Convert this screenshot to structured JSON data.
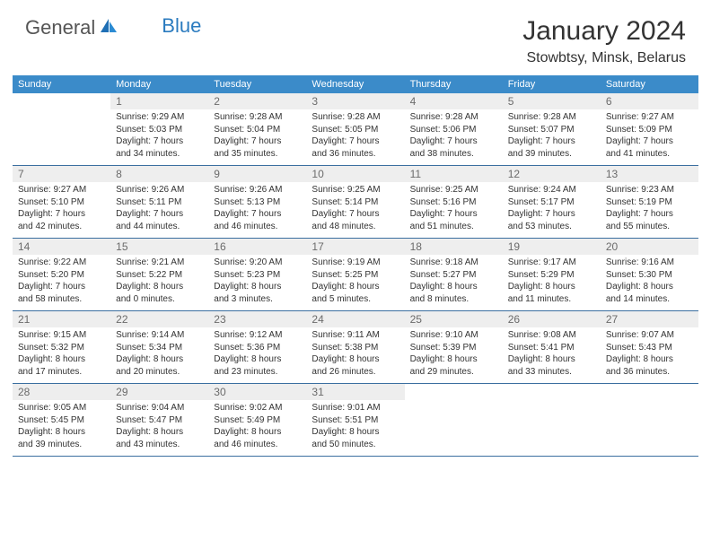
{
  "logo": {
    "part1": "General",
    "part2": "Blue"
  },
  "title": "January 2024",
  "location": "Stowbtsy, Minsk, Belarus",
  "colors": {
    "header_bg": "#3b8bc9",
    "header_text": "#ffffff",
    "row_border": "#3b6fa0",
    "daynum_shade": "#eeeeee",
    "text": "#333333",
    "logo_gray": "#555555",
    "logo_blue": "#2b7bbf"
  },
  "typography": {
    "title_fontsize": 30,
    "location_fontsize": 16,
    "dow_fontsize": 11,
    "daynum_fontsize": 12,
    "body_fontsize": 10
  },
  "days_of_week": [
    "Sunday",
    "Monday",
    "Tuesday",
    "Wednesday",
    "Thursday",
    "Friday",
    "Saturday"
  ],
  "layout": {
    "cols": 7,
    "rows": 5,
    "first_weekday_index": 1,
    "last_day": 31
  },
  "days": [
    {
      "n": "1",
      "sr": "Sunrise: 9:29 AM",
      "ss": "Sunset: 5:03 PM",
      "d1": "Daylight: 7 hours",
      "d2": "and 34 minutes."
    },
    {
      "n": "2",
      "sr": "Sunrise: 9:28 AM",
      "ss": "Sunset: 5:04 PM",
      "d1": "Daylight: 7 hours",
      "d2": "and 35 minutes."
    },
    {
      "n": "3",
      "sr": "Sunrise: 9:28 AM",
      "ss": "Sunset: 5:05 PM",
      "d1": "Daylight: 7 hours",
      "d2": "and 36 minutes."
    },
    {
      "n": "4",
      "sr": "Sunrise: 9:28 AM",
      "ss": "Sunset: 5:06 PM",
      "d1": "Daylight: 7 hours",
      "d2": "and 38 minutes."
    },
    {
      "n": "5",
      "sr": "Sunrise: 9:28 AM",
      "ss": "Sunset: 5:07 PM",
      "d1": "Daylight: 7 hours",
      "d2": "and 39 minutes."
    },
    {
      "n": "6",
      "sr": "Sunrise: 9:27 AM",
      "ss": "Sunset: 5:09 PM",
      "d1": "Daylight: 7 hours",
      "d2": "and 41 minutes."
    },
    {
      "n": "7",
      "sr": "Sunrise: 9:27 AM",
      "ss": "Sunset: 5:10 PM",
      "d1": "Daylight: 7 hours",
      "d2": "and 42 minutes."
    },
    {
      "n": "8",
      "sr": "Sunrise: 9:26 AM",
      "ss": "Sunset: 5:11 PM",
      "d1": "Daylight: 7 hours",
      "d2": "and 44 minutes."
    },
    {
      "n": "9",
      "sr": "Sunrise: 9:26 AM",
      "ss": "Sunset: 5:13 PM",
      "d1": "Daylight: 7 hours",
      "d2": "and 46 minutes."
    },
    {
      "n": "10",
      "sr": "Sunrise: 9:25 AM",
      "ss": "Sunset: 5:14 PM",
      "d1": "Daylight: 7 hours",
      "d2": "and 48 minutes."
    },
    {
      "n": "11",
      "sr": "Sunrise: 9:25 AM",
      "ss": "Sunset: 5:16 PM",
      "d1": "Daylight: 7 hours",
      "d2": "and 51 minutes."
    },
    {
      "n": "12",
      "sr": "Sunrise: 9:24 AM",
      "ss": "Sunset: 5:17 PM",
      "d1": "Daylight: 7 hours",
      "d2": "and 53 minutes."
    },
    {
      "n": "13",
      "sr": "Sunrise: 9:23 AM",
      "ss": "Sunset: 5:19 PM",
      "d1": "Daylight: 7 hours",
      "d2": "and 55 minutes."
    },
    {
      "n": "14",
      "sr": "Sunrise: 9:22 AM",
      "ss": "Sunset: 5:20 PM",
      "d1": "Daylight: 7 hours",
      "d2": "and 58 minutes."
    },
    {
      "n": "15",
      "sr": "Sunrise: 9:21 AM",
      "ss": "Sunset: 5:22 PM",
      "d1": "Daylight: 8 hours",
      "d2": "and 0 minutes."
    },
    {
      "n": "16",
      "sr": "Sunrise: 9:20 AM",
      "ss": "Sunset: 5:23 PM",
      "d1": "Daylight: 8 hours",
      "d2": "and 3 minutes."
    },
    {
      "n": "17",
      "sr": "Sunrise: 9:19 AM",
      "ss": "Sunset: 5:25 PM",
      "d1": "Daylight: 8 hours",
      "d2": "and 5 minutes."
    },
    {
      "n": "18",
      "sr": "Sunrise: 9:18 AM",
      "ss": "Sunset: 5:27 PM",
      "d1": "Daylight: 8 hours",
      "d2": "and 8 minutes."
    },
    {
      "n": "19",
      "sr": "Sunrise: 9:17 AM",
      "ss": "Sunset: 5:29 PM",
      "d1": "Daylight: 8 hours",
      "d2": "and 11 minutes."
    },
    {
      "n": "20",
      "sr": "Sunrise: 9:16 AM",
      "ss": "Sunset: 5:30 PM",
      "d1": "Daylight: 8 hours",
      "d2": "and 14 minutes."
    },
    {
      "n": "21",
      "sr": "Sunrise: 9:15 AM",
      "ss": "Sunset: 5:32 PM",
      "d1": "Daylight: 8 hours",
      "d2": "and 17 minutes."
    },
    {
      "n": "22",
      "sr": "Sunrise: 9:14 AM",
      "ss": "Sunset: 5:34 PM",
      "d1": "Daylight: 8 hours",
      "d2": "and 20 minutes."
    },
    {
      "n": "23",
      "sr": "Sunrise: 9:12 AM",
      "ss": "Sunset: 5:36 PM",
      "d1": "Daylight: 8 hours",
      "d2": "and 23 minutes."
    },
    {
      "n": "24",
      "sr": "Sunrise: 9:11 AM",
      "ss": "Sunset: 5:38 PM",
      "d1": "Daylight: 8 hours",
      "d2": "and 26 minutes."
    },
    {
      "n": "25",
      "sr": "Sunrise: 9:10 AM",
      "ss": "Sunset: 5:39 PM",
      "d1": "Daylight: 8 hours",
      "d2": "and 29 minutes."
    },
    {
      "n": "26",
      "sr": "Sunrise: 9:08 AM",
      "ss": "Sunset: 5:41 PM",
      "d1": "Daylight: 8 hours",
      "d2": "and 33 minutes."
    },
    {
      "n": "27",
      "sr": "Sunrise: 9:07 AM",
      "ss": "Sunset: 5:43 PM",
      "d1": "Daylight: 8 hours",
      "d2": "and 36 minutes."
    },
    {
      "n": "28",
      "sr": "Sunrise: 9:05 AM",
      "ss": "Sunset: 5:45 PM",
      "d1": "Daylight: 8 hours",
      "d2": "and 39 minutes."
    },
    {
      "n": "29",
      "sr": "Sunrise: 9:04 AM",
      "ss": "Sunset: 5:47 PM",
      "d1": "Daylight: 8 hours",
      "d2": "and 43 minutes."
    },
    {
      "n": "30",
      "sr": "Sunrise: 9:02 AM",
      "ss": "Sunset: 5:49 PM",
      "d1": "Daylight: 8 hours",
      "d2": "and 46 minutes."
    },
    {
      "n": "31",
      "sr": "Sunrise: 9:01 AM",
      "ss": "Sunset: 5:51 PM",
      "d1": "Daylight: 8 hours",
      "d2": "and 50 minutes."
    }
  ]
}
